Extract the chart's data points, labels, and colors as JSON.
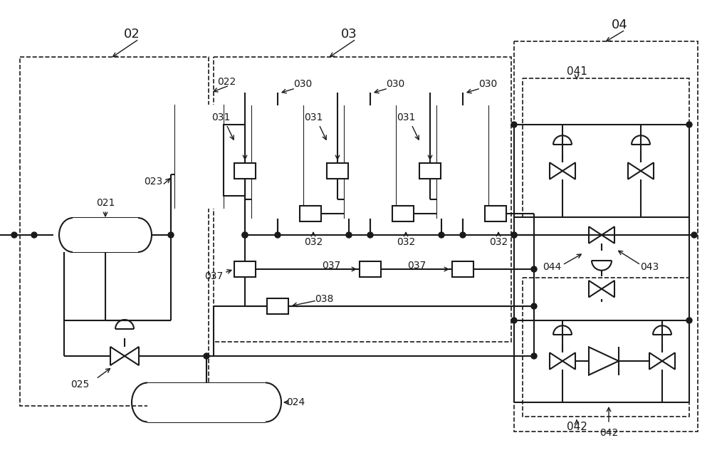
{
  "bg_color": "#ffffff",
  "line_color": "#1a1a1a",
  "fig_width": 10.0,
  "fig_height": 6.46,
  "dpi": 100
}
